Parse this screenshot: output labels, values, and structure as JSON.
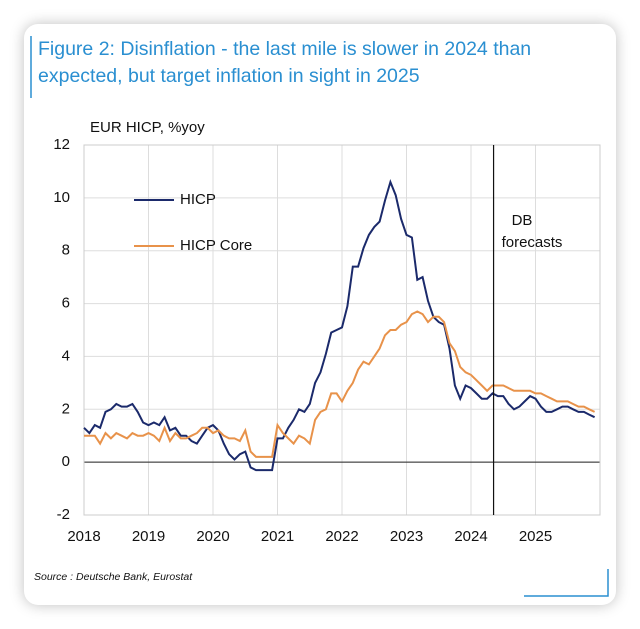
{
  "chart_data": {
    "type": "line",
    "title": "Figure 2: Disinflation - the last mile is slower in 2024 than expected, but target inflation in sight in 2025",
    "y_label": "EUR HICP, %yoy",
    "source": "Source : Deutsche Bank, Eurostat",
    "annotation": {
      "text": "DB forecasts",
      "x": 2024.35
    },
    "x": [
      2018.0,
      2018.083,
      2018.167,
      2018.25,
      2018.333,
      2018.417,
      2018.5,
      2018.583,
      2018.667,
      2018.75,
      2018.833,
      2018.917,
      2019.0,
      2019.083,
      2019.167,
      2019.25,
      2019.333,
      2019.417,
      2019.5,
      2019.583,
      2019.667,
      2019.75,
      2019.833,
      2019.917,
      2020.0,
      2020.083,
      2020.167,
      2020.25,
      2020.333,
      2020.417,
      2020.5,
      2020.583,
      2020.667,
      2020.75,
      2020.833,
      2020.917,
      2021.0,
      2021.083,
      2021.167,
      2021.25,
      2021.333,
      2021.417,
      2021.5,
      2021.583,
      2021.667,
      2021.75,
      2021.833,
      2021.917,
      2022.0,
      2022.083,
      2022.167,
      2022.25,
      2022.333,
      2022.417,
      2022.5,
      2022.583,
      2022.667,
      2022.75,
      2022.833,
      2022.917,
      2023.0,
      2023.083,
      2023.167,
      2023.25,
      2023.333,
      2023.417,
      2023.5,
      2023.583,
      2023.667,
      2023.75,
      2023.833,
      2023.917,
      2024.0,
      2024.083,
      2024.167,
      2024.25,
      2024.333,
      2024.417,
      2024.5,
      2024.583,
      2024.667,
      2024.75,
      2024.833,
      2024.917,
      2025.0,
      2025.083,
      2025.167,
      2025.25,
      2025.333,
      2025.417,
      2025.5,
      2025.583,
      2025.667,
      2025.75,
      2025.833,
      2025.917
    ],
    "series": [
      {
        "name": "HICP",
        "color": "#1b2a6b",
        "values": [
          1.3,
          1.1,
          1.4,
          1.3,
          1.9,
          2.0,
          2.2,
          2.1,
          2.1,
          2.2,
          1.9,
          1.5,
          1.4,
          1.5,
          1.4,
          1.7,
          1.2,
          1.3,
          1.0,
          1.0,
          0.8,
          0.7,
          1.0,
          1.3,
          1.4,
          1.2,
          0.7,
          0.3,
          0.1,
          0.3,
          0.4,
          -0.2,
          -0.3,
          -0.3,
          -0.3,
          -0.3,
          0.9,
          0.9,
          1.3,
          1.6,
          2.0,
          1.9,
          2.2,
          3.0,
          3.4,
          4.1,
          4.9,
          5.0,
          5.1,
          5.9,
          7.4,
          7.4,
          8.1,
          8.6,
          8.9,
          9.1,
          9.9,
          10.6,
          10.1,
          9.2,
          8.6,
          8.5,
          6.9,
          7.0,
          6.1,
          5.5,
          5.3,
          5.2,
          4.3,
          2.9,
          2.4,
          2.9,
          2.8,
          2.6,
          2.4,
          2.4,
          2.6,
          2.5,
          2.5,
          2.2,
          2.0,
          2.1,
          2.3,
          2.5,
          2.4,
          2.1,
          1.9,
          1.9,
          2.0,
          2.1,
          2.1,
          2.0,
          1.9,
          1.9,
          1.8,
          1.7
        ]
      },
      {
        "name": "HICP Core",
        "color": "#e8924a",
        "values": [
          1.0,
          1.0,
          1.0,
          0.7,
          1.1,
          0.9,
          1.1,
          1.0,
          0.9,
          1.1,
          1.0,
          1.0,
          1.1,
          1.0,
          0.8,
          1.3,
          0.8,
          1.1,
          0.9,
          0.9,
          1.0,
          1.1,
          1.3,
          1.3,
          1.1,
          1.2,
          1.0,
          0.9,
          0.9,
          0.8,
          1.2,
          0.4,
          0.2,
          0.2,
          0.2,
          0.2,
          1.4,
          1.1,
          0.9,
          0.7,
          1.0,
          0.9,
          0.7,
          1.6,
          1.9,
          2.0,
          2.6,
          2.6,
          2.3,
          2.7,
          3.0,
          3.5,
          3.8,
          3.7,
          4.0,
          4.3,
          4.8,
          5.0,
          5.0,
          5.2,
          5.3,
          5.6,
          5.7,
          5.6,
          5.3,
          5.5,
          5.5,
          5.3,
          4.5,
          4.2,
          3.6,
          3.4,
          3.3,
          3.1,
          2.9,
          2.7,
          2.9,
          2.9,
          2.9,
          2.8,
          2.7,
          2.7,
          2.7,
          2.7,
          2.6,
          2.6,
          2.5,
          2.4,
          2.3,
          2.3,
          2.3,
          2.2,
          2.1,
          2.1,
          2.0,
          1.9
        ]
      }
    ],
    "xlim": [
      2018,
      2026
    ],
    "xticks": [
      2018,
      2019,
      2020,
      2021,
      2022,
      2023,
      2024,
      2025
    ],
    "ylim": [
      -2,
      12
    ],
    "yticks": [
      -2,
      0,
      2,
      4,
      6,
      8,
      10,
      12
    ],
    "grid": true,
    "legend": "upper left"
  }
}
